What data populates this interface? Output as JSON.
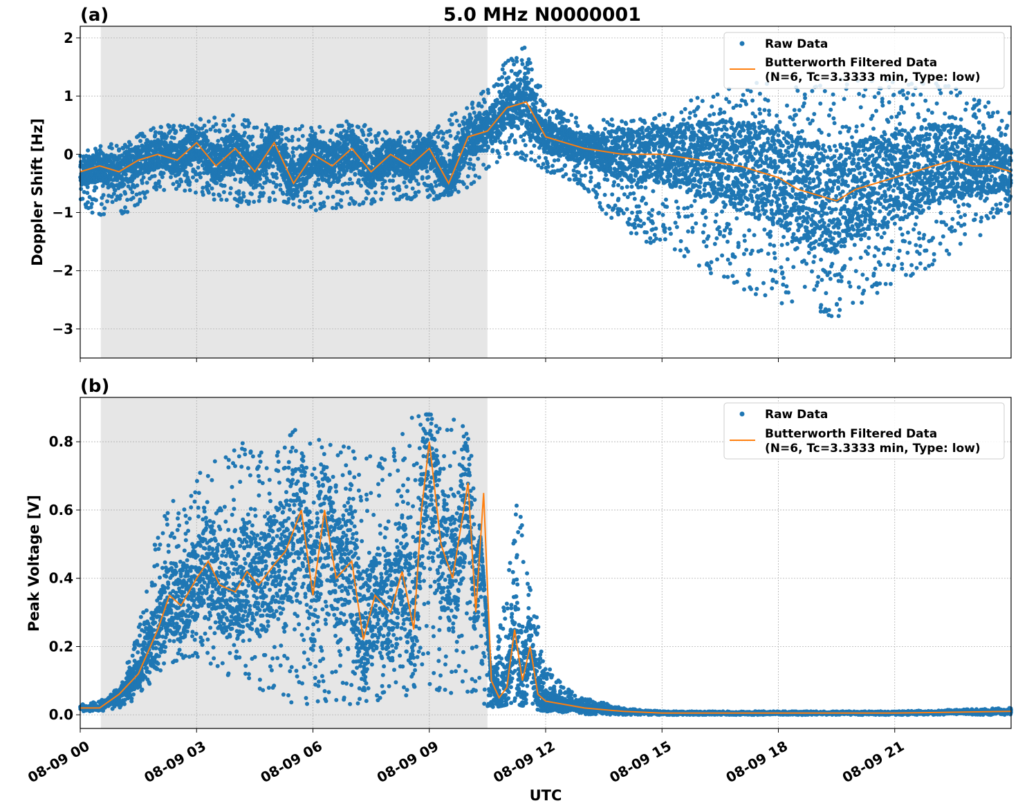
{
  "figure": {
    "title": "5.0 MHz N0000001",
    "xlabel": "UTC"
  },
  "colors": {
    "raw": "#1f77b4",
    "filtered": "#ff7f0e",
    "shade": "#e6e6e6",
    "grid": "#b0b0b0"
  },
  "chart_data": [
    {
      "type": "scatter",
      "panel_label": "(a)",
      "ylabel": "Doppler Shift [Hz]",
      "x_range_hours": [
        0,
        24
      ],
      "ylim": [
        -3.5,
        2.2
      ],
      "yticks": [
        2,
        1,
        0,
        -1,
        -2,
        -3
      ],
      "ytick_labels": [
        "2",
        "1",
        "0",
        "−1",
        "−2",
        "−3"
      ],
      "xtick_hours": [
        0,
        3,
        6,
        9,
        12,
        15,
        18,
        21
      ],
      "shaded_span_hours": [
        0.53,
        10.5
      ],
      "grid": true,
      "legend": {
        "placement": "top-right",
        "entries": [
          "Raw Data",
          "Butterworth Filtered Data",
          "(N=6, Tc=3.3333 min, Type: low)"
        ]
      },
      "series": [
        {
          "name": "Raw Data",
          "kind": "band",
          "x": [
            0,
            1,
            2,
            3,
            4,
            5,
            6,
            7,
            8,
            9,
            10,
            11,
            11.5,
            12,
            13,
            14,
            15,
            16,
            17,
            18,
            19,
            20,
            21,
            22,
            23,
            24
          ],
          "y_high": [
            0.1,
            0.2,
            0.5,
            0.6,
            0.7,
            0.5,
            0.5,
            0.6,
            0.4,
            0.4,
            0.9,
            1.6,
            1.9,
            0.9,
            0.6,
            0.6,
            0.7,
            1.0,
            1.2,
            1.3,
            1.3,
            1.3,
            1.3,
            1.3,
            1.0,
            0.8
          ],
          "y_low": [
            -1.0,
            -1.1,
            -0.6,
            -0.7,
            -0.9,
            -0.8,
            -1.0,
            -0.9,
            -0.8,
            -0.8,
            -0.6,
            0.0,
            -0.1,
            -0.3,
            -0.6,
            -1.4,
            -1.6,
            -2.0,
            -2.3,
            -2.6,
            -3.0,
            -2.6,
            -2.3,
            -2.0,
            -1.5,
            -1.0
          ]
        },
        {
          "name": "Butterworth Filtered Data",
          "kind": "line",
          "x": [
            0,
            0.5,
            1,
            1.5,
            2,
            2.5,
            3,
            3.5,
            4,
            4.5,
            5,
            5.5,
            6,
            6.5,
            7,
            7.5,
            8,
            8.5,
            9,
            9.5,
            10,
            10.5,
            11,
            11.5,
            12,
            12.5,
            13,
            14,
            15,
            16,
            17,
            17.5,
            18,
            18.5,
            19,
            19.5,
            20,
            20.5,
            21,
            21.5,
            22,
            22.5,
            23,
            23.5,
            24
          ],
          "y": [
            -0.3,
            -0.2,
            -0.3,
            -0.1,
            0.0,
            -0.1,
            0.2,
            -0.2,
            0.1,
            -0.3,
            0.2,
            -0.5,
            0.0,
            -0.2,
            0.1,
            -0.3,
            0.0,
            -0.2,
            0.1,
            -0.5,
            0.3,
            0.4,
            0.8,
            0.9,
            0.3,
            0.2,
            0.1,
            0.0,
            0.0,
            -0.1,
            -0.2,
            -0.3,
            -0.4,
            -0.6,
            -0.7,
            -0.8,
            -0.6,
            -0.5,
            -0.4,
            -0.3,
            -0.2,
            -0.1,
            -0.2,
            -0.2,
            -0.3
          ]
        }
      ]
    },
    {
      "type": "scatter",
      "panel_label": "(b)",
      "ylabel": "Peak Voltage [V]",
      "x_range_hours": [
        0,
        24
      ],
      "ylim": [
        -0.04,
        0.93
      ],
      "yticks": [
        0.0,
        0.2,
        0.4,
        0.6,
        0.8
      ],
      "ytick_labels": [
        "0.0",
        "0.2",
        "0.4",
        "0.6",
        "0.8"
      ],
      "xtick_hours": [
        0,
        3,
        6,
        9,
        12,
        15,
        18,
        21
      ],
      "xtick_labels": [
        "08-09 00",
        "08-09 03",
        "08-09 06",
        "08-09 09",
        "08-09 12",
        "08-09 15",
        "08-09 18",
        "08-09 21"
      ],
      "shaded_span_hours": [
        0.53,
        10.5
      ],
      "grid": true,
      "legend": {
        "placement": "top-right",
        "entries": [
          "Raw Data",
          "Butterworth Filtered Data",
          "(N=6, Tc=3.3333 min, Type: low)"
        ]
      },
      "series": [
        {
          "name": "Raw Data",
          "kind": "band",
          "x": [
            0,
            0.5,
            1,
            1.5,
            2,
            2.5,
            3,
            4,
            5,
            5.5,
            6,
            7,
            8,
            8.5,
            9,
            10,
            10.3,
            10.6,
            11,
            11.3,
            11.6,
            12,
            12.5,
            13,
            14,
            15,
            18,
            21,
            24
          ],
          "y_high": [
            0.03,
            0.04,
            0.08,
            0.25,
            0.55,
            0.65,
            0.7,
            0.8,
            0.78,
            0.84,
            0.82,
            0.78,
            0.78,
            0.88,
            0.88,
            0.87,
            0.55,
            0.1,
            0.4,
            0.67,
            0.4,
            0.15,
            0.08,
            0.05,
            0.02,
            0.01,
            0.01,
            0.01,
            0.02
          ],
          "y_low": [
            0.01,
            0.01,
            0.02,
            0.05,
            0.12,
            0.15,
            0.17,
            0.1,
            0.05,
            0.03,
            0.03,
            0.03,
            0.03,
            0.05,
            0.05,
            0.05,
            0.03,
            0.02,
            0.03,
            0.03,
            0.02,
            0.01,
            0.005,
            0.002,
            0.0,
            0.0,
            0.0,
            0.0,
            0.0
          ]
        },
        {
          "name": "Butterworth Filtered Data",
          "kind": "line",
          "x": [
            0,
            0.5,
            1,
            1.5,
            2,
            2.3,
            2.6,
            3,
            3.3,
            3.6,
            4,
            4.3,
            4.6,
            5,
            5.3,
            5.7,
            6,
            6.3,
            6.6,
            7,
            7.3,
            7.6,
            8,
            8.3,
            8.6,
            8.8,
            9,
            9.3,
            9.6,
            10,
            10.2,
            10.4,
            10.6,
            10.8,
            11,
            11.2,
            11.4,
            11.6,
            11.8,
            12,
            12.5,
            13,
            14,
            15,
            18,
            21,
            24
          ],
          "y": [
            0.02,
            0.02,
            0.06,
            0.12,
            0.25,
            0.35,
            0.32,
            0.4,
            0.45,
            0.38,
            0.36,
            0.42,
            0.38,
            0.44,
            0.48,
            0.6,
            0.35,
            0.6,
            0.4,
            0.45,
            0.22,
            0.35,
            0.3,
            0.42,
            0.25,
            0.6,
            0.8,
            0.5,
            0.4,
            0.68,
            0.3,
            0.65,
            0.1,
            0.05,
            0.08,
            0.25,
            0.1,
            0.2,
            0.06,
            0.04,
            0.03,
            0.02,
            0.01,
            0.005,
            0.005,
            0.005,
            0.01
          ]
        }
      ]
    }
  ]
}
